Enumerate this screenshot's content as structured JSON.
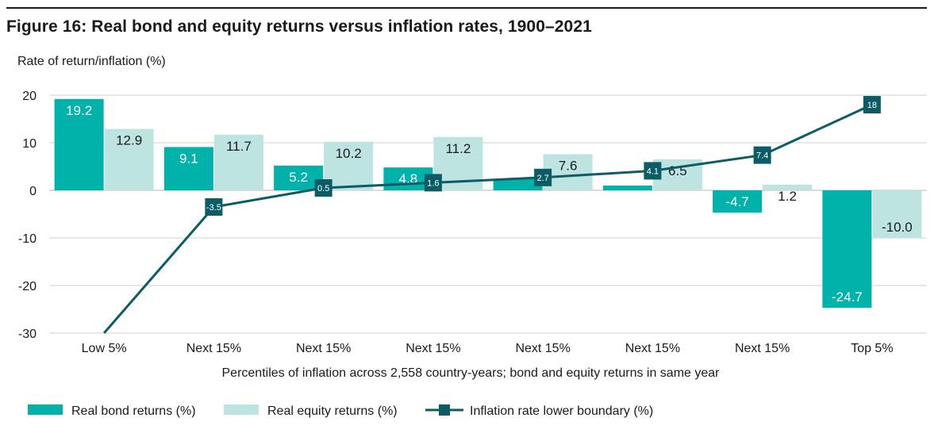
{
  "title": "Figure 16: Real bond and equity returns versus inflation rates, 1900–2021",
  "chart_data": {
    "type": "bar",
    "ylabel": "Rate of return/inflation (%)",
    "xlabel": "Percentiles of inflation across 2,558 country-years; bond and equity returns in same year",
    "ylim": [
      -30,
      20
    ],
    "yticks": [
      20,
      10,
      0,
      -10,
      -20,
      -30
    ],
    "categories": [
      "Low 5%",
      "Next 15%",
      "Next 15%",
      "Next 15%",
      "Next 15%",
      "Next 15%",
      "Next 15%",
      "Top 5%"
    ],
    "series": [
      {
        "name": "Real bond returns (%)",
        "kind": "bar",
        "color": "#00b2a9",
        "values": [
          19.2,
          9.1,
          5.2,
          4.8,
          2.4,
          1.0,
          -4.7,
          -24.7
        ],
        "labels": [
          "19.2",
          "9.1",
          "5.2",
          "4.8",
          "",
          "",
          "-4.7",
          "-24.7"
        ]
      },
      {
        "name": "Real equity returns (%)",
        "kind": "bar",
        "color": "#bde4e0",
        "values": [
          12.9,
          11.7,
          10.2,
          11.2,
          7.6,
          6.5,
          1.2,
          -10.0
        ],
        "labels": [
          "12.9",
          "11.7",
          "10.2",
          "11.2",
          "7.6",
          "6.5",
          "1.2",
          "-10.0"
        ]
      },
      {
        "name": "Inflation rate lower boundary (%)",
        "kind": "line",
        "color": "#0c5c66",
        "values": [
          -30,
          -3.5,
          0.5,
          1.6,
          2.7,
          4.1,
          7.4,
          18
        ],
        "labels": [
          "",
          "-3.5",
          "0.5",
          "1.6",
          "2.7",
          "4.1",
          "7.4",
          "18"
        ]
      }
    ]
  }
}
